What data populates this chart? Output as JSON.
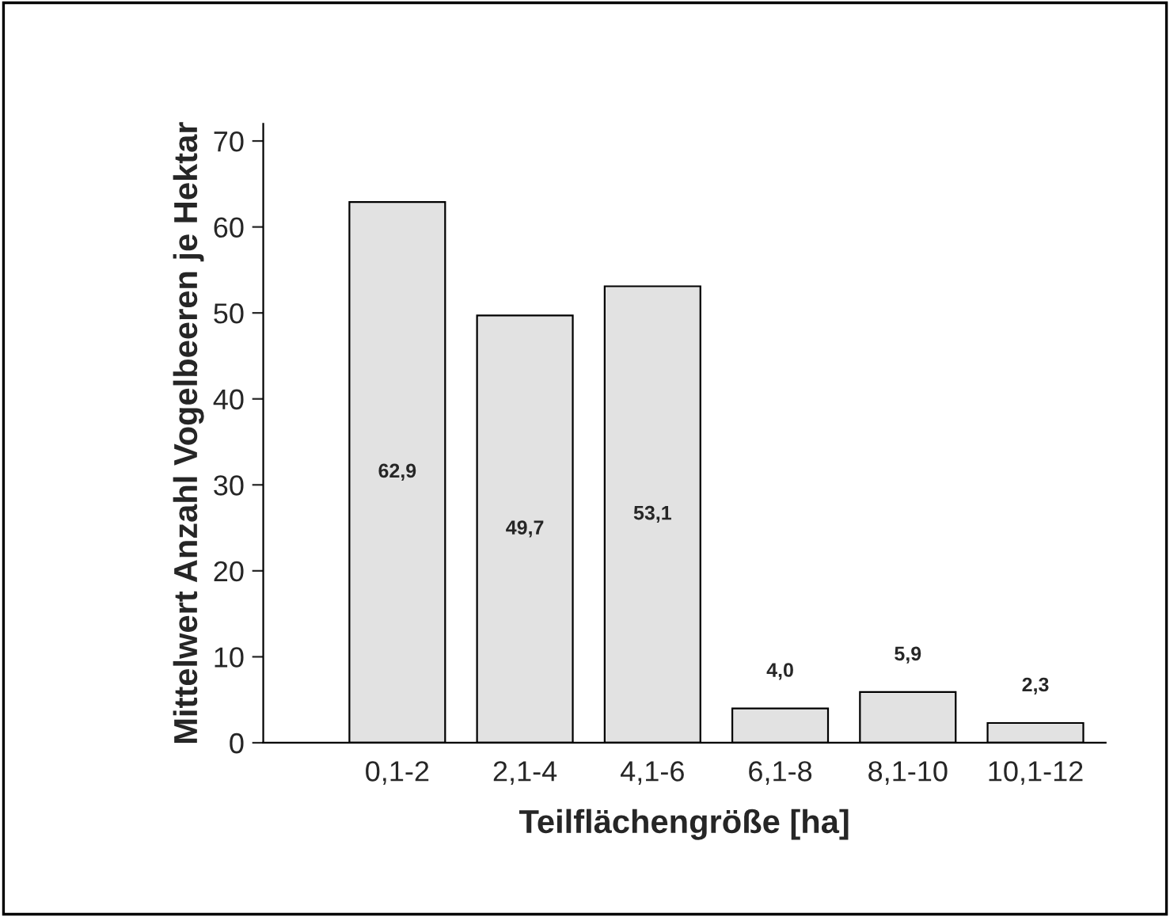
{
  "chart_data": {
    "type": "bar",
    "xlabel": "Teilflächengröße [ha]",
    "ylabel": "Mittelwert Anzahl Vogelbeeren je Hektar",
    "categories": [
      "0,1-2",
      "2,1-4",
      "4,1-6",
      "6,1-8",
      "8,1-10",
      "10,1-12"
    ],
    "values": [
      62.9,
      49.7,
      53.1,
      4.0,
      5.9,
      2.3
    ],
    "value_labels": [
      "62,9",
      "49,7",
      "53,1",
      "4,0",
      "5,9",
      "2,3"
    ],
    "color": "#e2e2e2",
    "ylim": [
      0,
      72
    ],
    "yticks": [
      0,
      10,
      20,
      30,
      40,
      50,
      60,
      70
    ],
    "grid": false
  }
}
